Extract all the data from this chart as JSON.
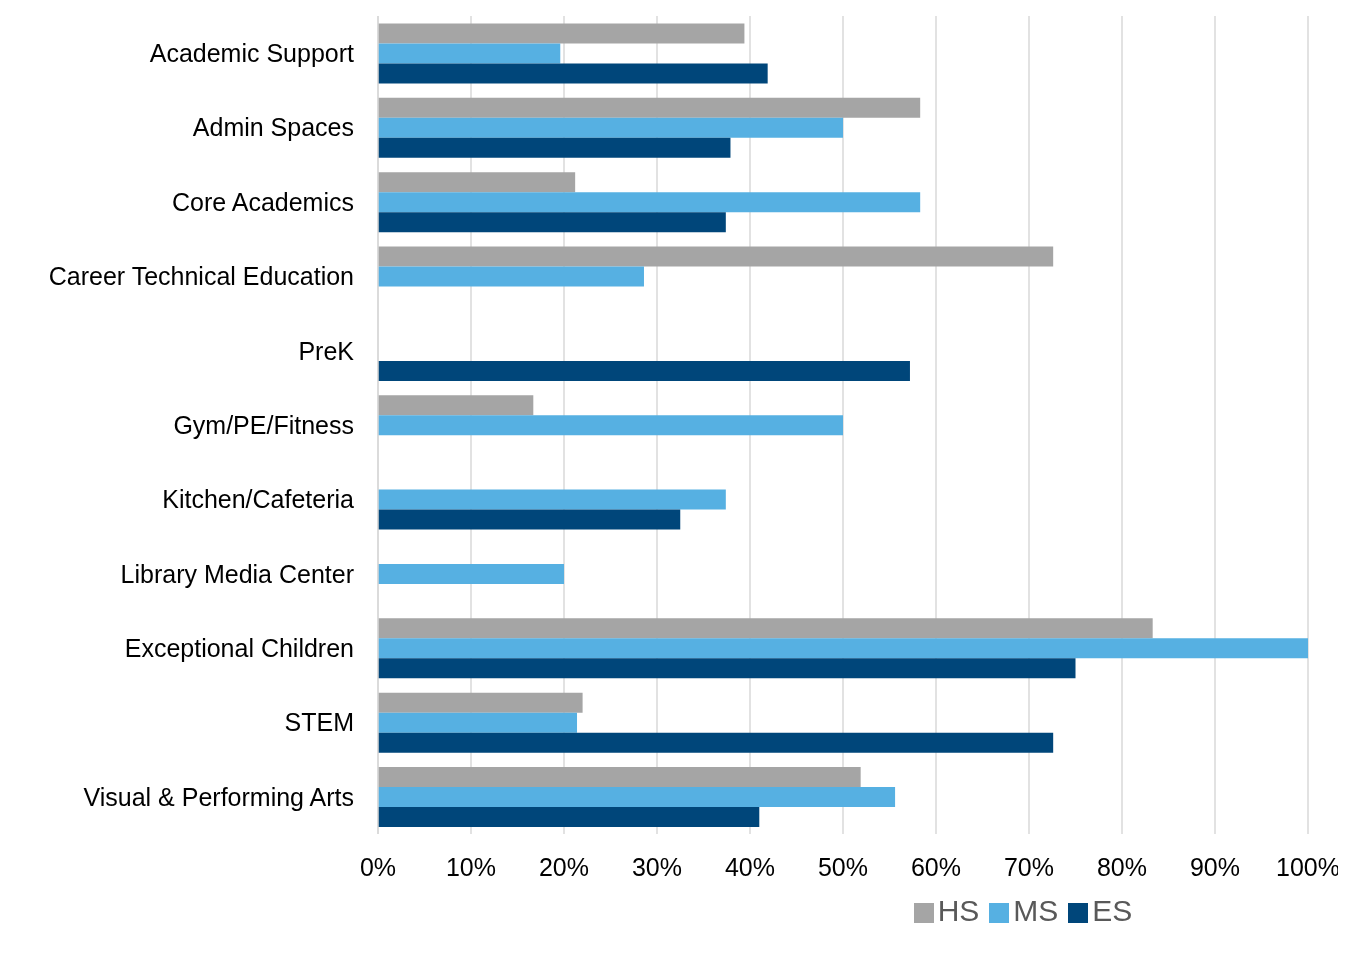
{
  "chart_data": {
    "type": "bar",
    "orientation": "horizontal",
    "categories": [
      "Academic Support",
      "Admin Spaces",
      "Core Academics",
      "Career Technical Education",
      "PreK",
      "Gym/PE/Fitness",
      "Kitchen/Cafeteria",
      "Library Media Center",
      "Exceptional Children",
      "STEM",
      "Visual & Performing Arts"
    ],
    "series": [
      {
        "name": "HS",
        "color": "#a5a5a5",
        "values": [
          39.4,
          58.3,
          21.2,
          72.6,
          null,
          16.7,
          null,
          null,
          83.3,
          22.0,
          51.9
        ]
      },
      {
        "name": "MS",
        "color": "#56b0e2",
        "values": [
          19.6,
          50.0,
          58.3,
          28.6,
          null,
          50.0,
          37.4,
          20.0,
          100,
          21.4,
          55.6
        ]
      },
      {
        "name": "ES",
        "color": "#00467a",
        "values": [
          41.9,
          37.9,
          37.4,
          null,
          57.2,
          null,
          32.5,
          null,
          75.0,
          72.6,
          41.0
        ]
      }
    ],
    "xlim": [
      0,
      100
    ],
    "xticks": [
      {
        "value": 0,
        "label": "0%"
      },
      {
        "value": 10,
        "label": "10%"
      },
      {
        "value": 20,
        "label": "20%"
      },
      {
        "value": 30,
        "label": "30%"
      },
      {
        "value": 40,
        "label": "40%"
      },
      {
        "value": 50,
        "label": "50%"
      },
      {
        "value": 60,
        "label": "60%"
      },
      {
        "value": 70,
        "label": "70%"
      },
      {
        "value": 80,
        "label": "80%"
      },
      {
        "value": 90,
        "label": "90%"
      },
      {
        "value": 100,
        "label": "100%"
      }
    ],
    "grid": "x",
    "legend": "bottom"
  }
}
